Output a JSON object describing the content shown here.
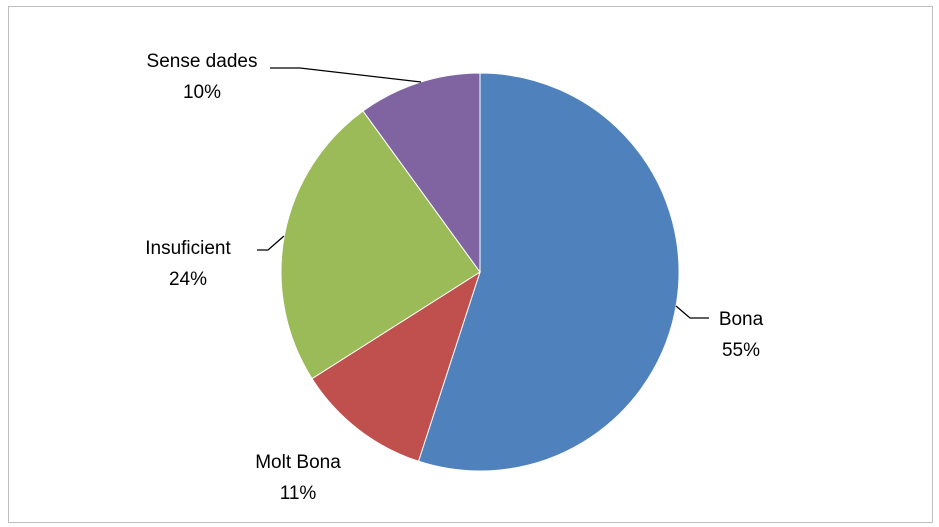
{
  "chart_data": {
    "type": "pie",
    "title": "",
    "start_angle_deg": 0,
    "direction": "clockwise",
    "legend": "none",
    "slices": [
      {
        "category": "Bona",
        "percent_label": "55%",
        "value": 55,
        "color": "#4F81BD"
      },
      {
        "category": "Molt Bona",
        "percent_label": "11%",
        "value": 11,
        "color": "#C0504D"
      },
      {
        "category": "Insuficient",
        "percent_label": "24%",
        "value": 24,
        "color": "#9BBB59"
      },
      {
        "category": "Sense dades",
        "percent_label": "10%",
        "value": 10,
        "color": "#8064A2"
      }
    ]
  }
}
